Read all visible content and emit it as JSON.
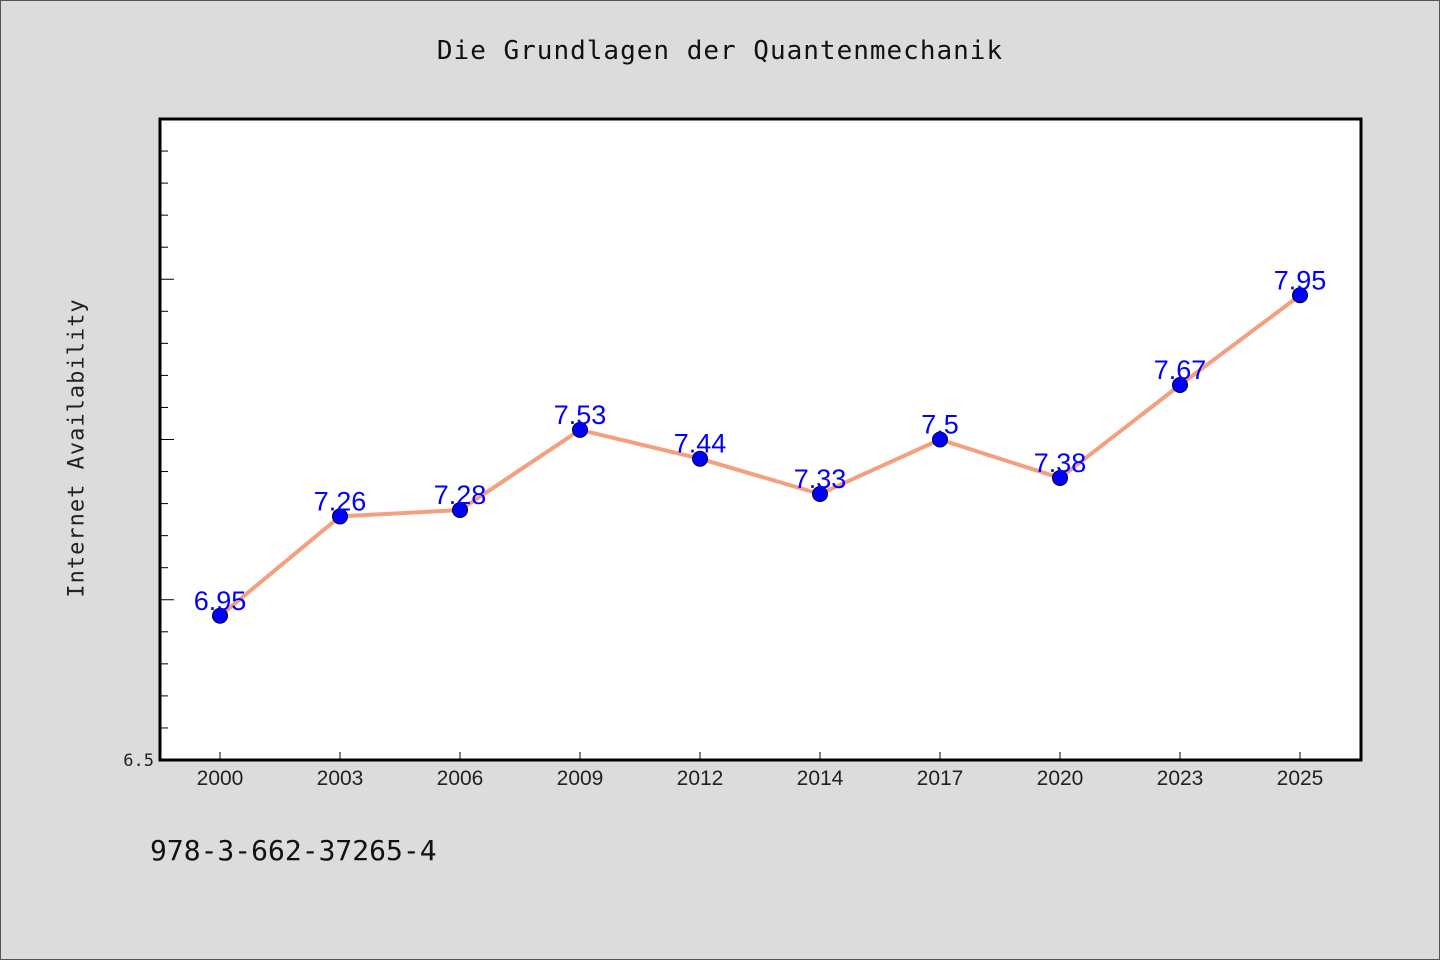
{
  "chart_data": {
    "type": "line",
    "title": "Die Grundlagen der Quantenmechanik",
    "ylabel": "Internet Availability",
    "xlabel": "",
    "categories": [
      "2000",
      "2003",
      "2006",
      "2009",
      "2012",
      "2014",
      "2017",
      "2020",
      "2023",
      "2025"
    ],
    "series": [
      {
        "values": [
          6.95,
          7.26,
          7.28,
          7.53,
          7.44,
          7.33,
          7.5,
          7.38,
          7.67,
          7.95
        ]
      }
    ],
    "data_labels": [
      "6.95",
      "7.26",
      "7.28",
      "7.53",
      "7.44",
      "7.33",
      "7.5",
      "7.38",
      "7.67",
      "7.95"
    ],
    "ylim": [
      6.5,
      8.5
    ],
    "y_tick_labels": [
      "6.5"
    ],
    "grid": false,
    "legend": "none",
    "colors": {
      "line": "#f4a07e",
      "marker": "#0000ff",
      "data_label": "#0000ff",
      "plot_background": "#ffffff",
      "figure_background": "#dcdcdc"
    }
  },
  "footer": {
    "code": "978-3-662-37265-4"
  }
}
